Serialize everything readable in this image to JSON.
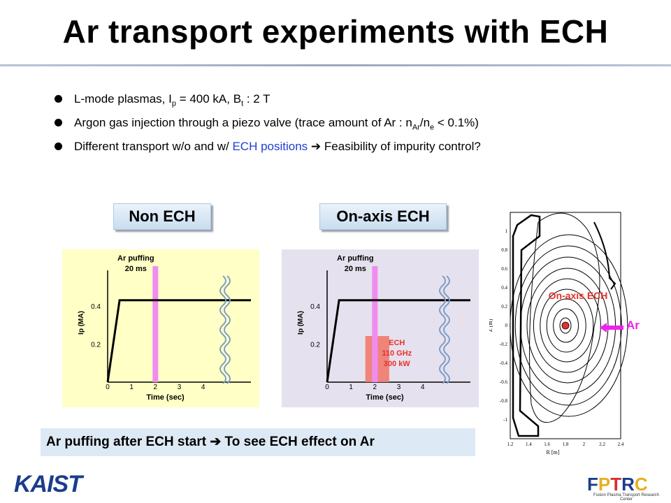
{
  "title": "Ar transport experiments with ECH",
  "bullets": {
    "b1": {
      "pre": "L-mode plasmas, I",
      "sub1": "p",
      "mid": " = 400 kA, B",
      "sub2": "t",
      "post": " : 2 T"
    },
    "b2": {
      "pre": "Argon gas injection through a piezo valve (trace amount of Ar : n",
      "sub1": "Ar",
      "mid": "/n",
      "sub2": "e",
      "post": " < 0.1%)"
    },
    "b3": {
      "pre": "Different transport w/o and w/ ",
      "blue": "ECH positions",
      "arrow": "➔",
      "post": " Feasibility of impurity control?"
    }
  },
  "labels": {
    "non_ech": "Non ECH",
    "on_axis_ech": "On-axis ECH"
  },
  "panel_text": {
    "ar_puff_line1": "Ar puffing",
    "ar_puff_line2": "20 ms",
    "ylabel": "Ip (MA)",
    "xlabel": "Time (sec)",
    "ech_line1": "ECH",
    "ech_line2": "110 GHz",
    "ech_line3": "300 kW"
  },
  "chart_data": [
    {
      "type": "line",
      "panel": "Non ECH",
      "x": [
        0,
        0.5,
        6.0
      ],
      "y": [
        0,
        0.43,
        0.43
      ],
      "xticks": [
        "0",
        "1",
        "2",
        "3",
        "4"
      ],
      "yticks": [
        "0.2",
        "0.4"
      ],
      "xlim": [
        0,
        6.0
      ],
      "ylim": [
        0,
        0.55
      ],
      "xlabel": "Time (sec)",
      "ylabel": "Ip (MA)",
      "ar_puff_time": 2.0,
      "annotation": "Ar puffing 20 ms",
      "colors": {
        "trace": "#000000",
        "ar_puff": "#f08cf0",
        "break": "#7c9ec6"
      }
    },
    {
      "type": "line",
      "panel": "On-axis ECH",
      "x": [
        0,
        0.5,
        6.0
      ],
      "y": [
        0,
        0.43,
        0.43
      ],
      "xticks": [
        "0",
        "1",
        "2",
        "3",
        "4"
      ],
      "yticks": [
        "0.2",
        "0.4"
      ],
      "xlim": [
        0,
        6.0
      ],
      "ylim": [
        0,
        0.55
      ],
      "xlabel": "Time (sec)",
      "ylabel": "Ip (MA)",
      "ar_puff_time": 2.0,
      "ech_window": [
        1.6,
        2.6
      ],
      "ech_annotation": "ECH 110 GHz 300 kW",
      "annotation": "Ar puffing 20 ms",
      "colors": {
        "trace": "#000000",
        "ar_puff": "#f08cf0",
        "ech": "#f07a6e",
        "break": "#7c9ec6"
      }
    },
    {
      "type": "contour",
      "panel": "equilibrium",
      "xlabel": "R [m]",
      "ylabel": "Z [m]",
      "xticks": [
        "1.2",
        "1.4",
        "1.6",
        "1.8",
        "2",
        "2.2",
        "2.4"
      ],
      "yticks": [
        "1",
        "0.8",
        "0.6",
        "0.4",
        "0.2",
        "0",
        "-0.2",
        "-0.4",
        "-0.6",
        "-0.8",
        "-1"
      ],
      "xlim": [
        1.2,
        2.4
      ],
      "ylim": [
        -1.2,
        1.2
      ],
      "annotation": "On-axis ECH",
      "ar_label": "Ar",
      "colors": {
        "ech": "#e8302a",
        "ar": "#ee22ee"
      }
    }
  ],
  "bottom_note": {
    "pre": "Ar puffing after ECH start ",
    "arrow": "➔",
    "post": " To see ECH effect on Ar"
  },
  "logos": {
    "kaist": "KAIST",
    "fptrc": "FPTRC",
    "fptrc_sub": "Fusion Plasma Transport Research Center"
  }
}
